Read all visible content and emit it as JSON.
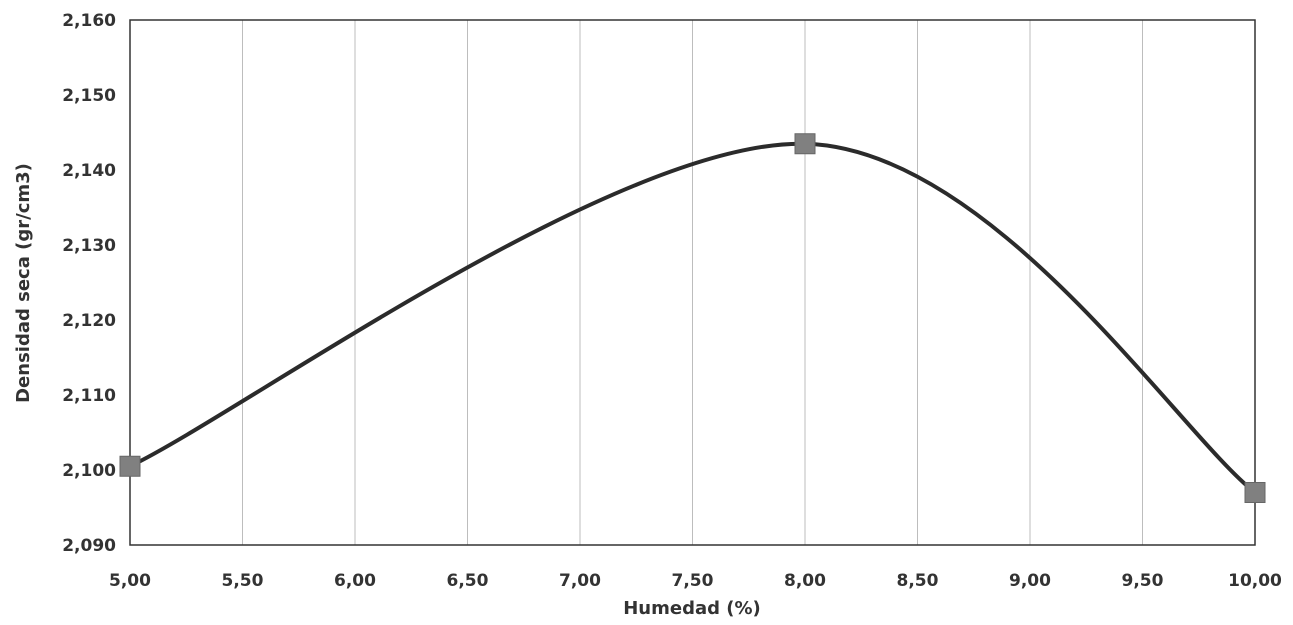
{
  "chart_data": {
    "type": "line",
    "title": "",
    "xlabel": "Humedad (%)",
    "ylabel": "Densidad seca (gr/cm3)",
    "x_ticks": [
      "5,00",
      "5,50",
      "6,00",
      "6,50",
      "7,00",
      "7,50",
      "8,00",
      "8,50",
      "9,00",
      "9,50",
      "10,00"
    ],
    "y_ticks": [
      "2,090",
      "2,100",
      "2,110",
      "2,120",
      "2,130",
      "2,140",
      "2,150",
      "2,160"
    ],
    "xlim": [
      5.0,
      10.0
    ],
    "ylim": [
      2.09,
      2.16
    ],
    "grid": "vertical",
    "series": [
      {
        "x": [
          5.0,
          8.0,
          10.0
        ],
        "y": [
          2.1005,
          2.1435,
          2.097
        ],
        "marker": "square",
        "smooth": true,
        "line_color": "#2b2b2b",
        "marker_color": "#808080"
      }
    ]
  }
}
